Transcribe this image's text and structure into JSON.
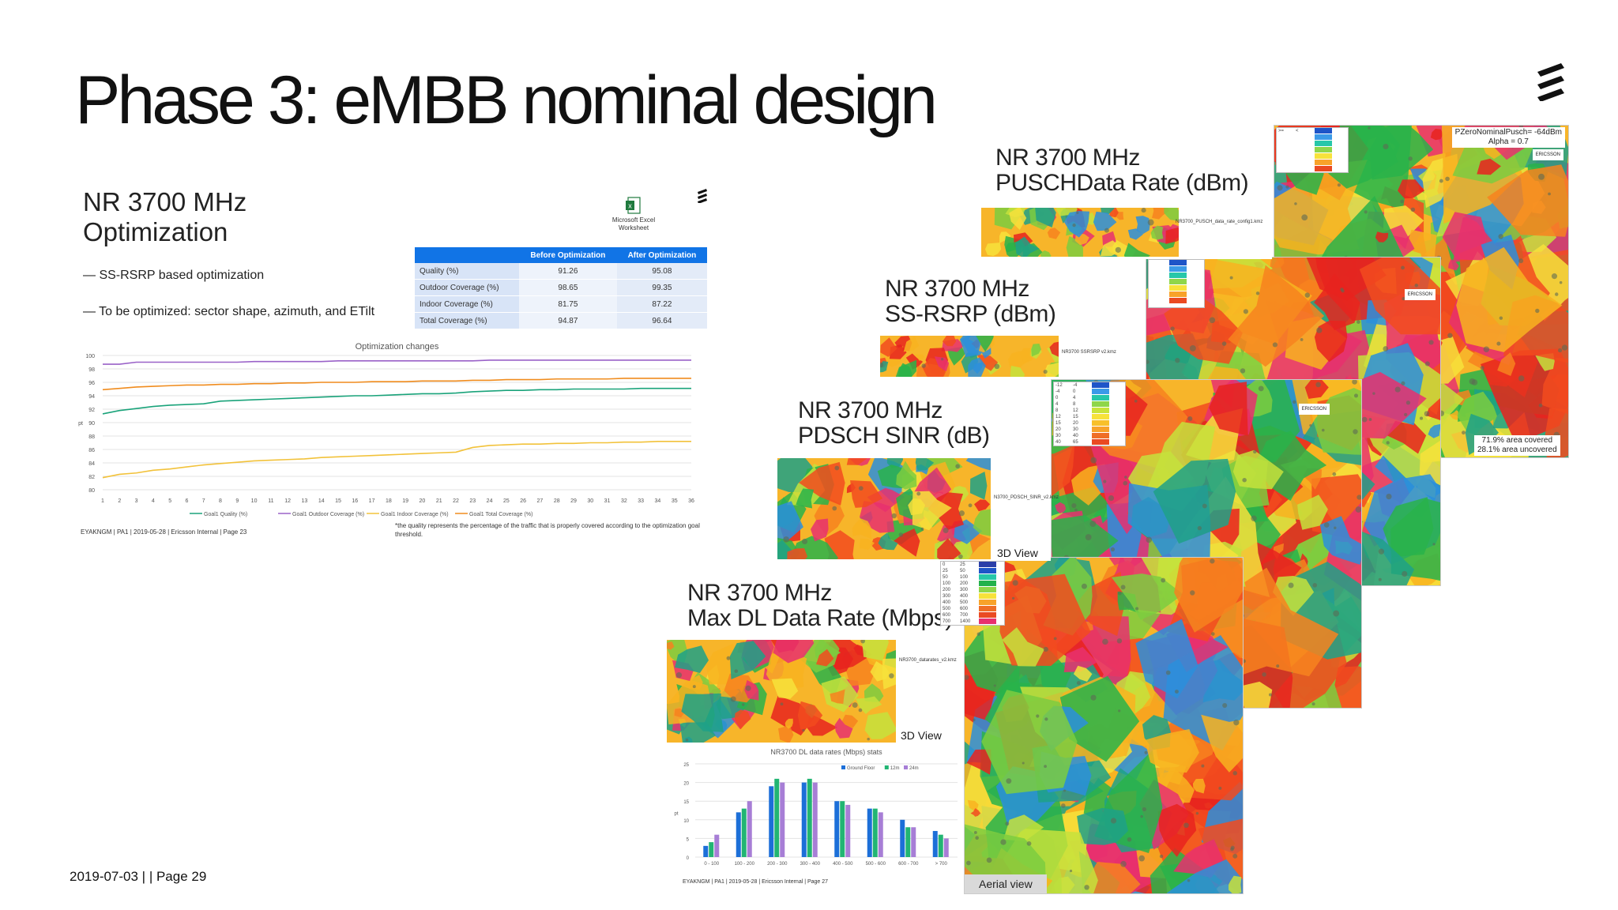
{
  "slide": {
    "title": "Phase 3: eMBB nominal design",
    "footer": "2019-07-03 |    | Page 29"
  },
  "left_slide": {
    "title_line1": "NR 3700 MHz",
    "title_line2": "Optimization",
    "bullets": [
      "— SS-RSRP based optimization",
      "— To be optimized: sector shape, azimuth, and ETilt"
    ],
    "excel_label_1": "Microsoft Excel",
    "excel_label_2": "Worksheet",
    "table": {
      "headers": [
        "",
        "Before Optimization",
        "After Optimization"
      ],
      "rows": [
        [
          "Quality (%)",
          "91.26",
          "95.08"
        ],
        [
          "Outdoor Coverage (%)",
          "98.65",
          "99.35"
        ],
        [
          "Indoor Coverage (%)",
          "81.75",
          "87.22"
        ],
        [
          "Total Coverage (%)",
          "94.87",
          "96.64"
        ]
      ]
    },
    "footer_note": "EYAKNGM | PA1 | 2019-05-28 | Ericsson Internal | Page 23",
    "quality_note": "*the quality represents the percentage of the traffic that is properly covered according to the optimization goal threshold."
  },
  "map_panels": {
    "pusch_label_1": "NR 3700 MHz",
    "pusch_label_2": "PUSCHData Rate (dBm)",
    "pusch_kmz": "NR3700_PUSCH_data_rate_config1.kmz",
    "pusch_note_1": "PZeroNominalPusch= -64dBm",
    "pusch_note_2": "Alpha = 0.7",
    "rsrp_label_1": "NR 3700 MHz",
    "rsrp_label_2": "SS-RSRP (dBm)",
    "rsrp_kmz": "NR3700 SSRSRP v2.kmz",
    "rsrp_cov_1": "71.9% area covered",
    "rsrp_cov_2": "28.1% area uncovered",
    "sinr_label_1": "NR 3700 MHz",
    "sinr_label_2": "PDSCH SINR (dB)",
    "sinr_kmz": "N3700_PDSCH_SINR_v2.kmz",
    "sinr_3d": "3D View",
    "dl_label_1": "NR 3700 MHz",
    "dl_label_2": "Max DL Data Rate (Mbps)",
    "dl_kmz": "NR3700_datarates_v2.kmz",
    "dl_3d": "3D View",
    "aerial": "Aerial view",
    "ericsson": "ERICSSON"
  },
  "chart_data": [
    {
      "type": "line",
      "title": "Optimization changes",
      "ylabel": "pt",
      "ylim": [
        80,
        100
      ],
      "yticks": [
        80,
        82,
        84,
        86,
        88,
        90,
        92,
        94,
        96,
        98,
        100
      ],
      "x": [
        1,
        2,
        3,
        4,
        5,
        6,
        7,
        8,
        9,
        10,
        11,
        12,
        13,
        14,
        15,
        16,
        17,
        18,
        19,
        20,
        21,
        22,
        23,
        24,
        25,
        26,
        27,
        28,
        29,
        30,
        31,
        32,
        33,
        34,
        35,
        36
      ],
      "series": [
        {
          "name": "Goal1 Quality (%)",
          "color": "#1aa37a",
          "values": [
            91.3,
            91.8,
            92.1,
            92.4,
            92.6,
            92.7,
            92.8,
            93.2,
            93.3,
            93.4,
            93.5,
            93.6,
            93.7,
            93.8,
            93.9,
            94.0,
            94.0,
            94.1,
            94.2,
            94.3,
            94.3,
            94.4,
            94.6,
            94.7,
            94.8,
            94.8,
            94.9,
            94.9,
            95.0,
            95.0,
            95.0,
            95.0,
            95.1,
            95.1,
            95.1,
            95.1
          ]
        },
        {
          "name": "Goal1 Outdoor Coverage (%)",
          "color": "#9a62c8",
          "values": [
            98.7,
            98.7,
            99.0,
            99.0,
            99.0,
            99.0,
            99.0,
            99.0,
            99.0,
            99.1,
            99.1,
            99.1,
            99.1,
            99.1,
            99.2,
            99.2,
            99.2,
            99.2,
            99.2,
            99.2,
            99.2,
            99.2,
            99.2,
            99.3,
            99.3,
            99.3,
            99.3,
            99.3,
            99.3,
            99.3,
            99.3,
            99.3,
            99.3,
            99.3,
            99.3,
            99.3
          ]
        },
        {
          "name": "Goal1 Indoor Coverage (%)",
          "color": "#f2c23a",
          "values": [
            81.8,
            82.3,
            82.5,
            82.9,
            83.1,
            83.4,
            83.7,
            83.9,
            84.1,
            84.3,
            84.4,
            84.5,
            84.6,
            84.8,
            84.9,
            85.0,
            85.1,
            85.2,
            85.3,
            85.4,
            85.5,
            85.6,
            86.3,
            86.6,
            86.7,
            86.8,
            86.8,
            86.9,
            86.9,
            87.0,
            87.0,
            87.1,
            87.1,
            87.2,
            87.2,
            87.2
          ]
        },
        {
          "name": "Goal1 Total Coverage (%)",
          "color": "#f08c1e",
          "values": [
            94.9,
            95.1,
            95.3,
            95.4,
            95.5,
            95.6,
            95.6,
            95.7,
            95.7,
            95.8,
            95.8,
            95.9,
            95.9,
            96.0,
            96.0,
            96.0,
            96.1,
            96.1,
            96.1,
            96.2,
            96.2,
            96.2,
            96.3,
            96.3,
            96.4,
            96.4,
            96.4,
            96.5,
            96.5,
            96.5,
            96.5,
            96.6,
            96.6,
            96.6,
            96.6,
            96.6
          ]
        }
      ]
    },
    {
      "type": "bar",
      "title": "NR3700 DL data rates (Mbps) stats",
      "ylabel": "pt",
      "ylim": [
        0,
        25
      ],
      "yticks": [
        0,
        5,
        10,
        15,
        20,
        25
      ],
      "categories": [
        "0 - 100",
        "100 - 200",
        "200 - 300",
        "300 - 400",
        "400 - 500",
        "500 - 600",
        "600 - 700",
        "> 700"
      ],
      "series": [
        {
          "name": "Ground Floor",
          "color": "#1c6fd8",
          "values": [
            3,
            12,
            19,
            20,
            15,
            13,
            10,
            7
          ]
        },
        {
          "name": "12m",
          "color": "#22b573",
          "values": [
            4,
            13,
            21,
            21,
            15,
            13,
            8,
            6
          ]
        },
        {
          "name": "24m",
          "color": "#a77ed6",
          "values": [
            6,
            15,
            20,
            20,
            14,
            12,
            8,
            5
          ]
        }
      ],
      "footer": "EYAKNGM | PA1 | 2019-05-28 | Ericsson Internal | Page 27"
    }
  ]
}
